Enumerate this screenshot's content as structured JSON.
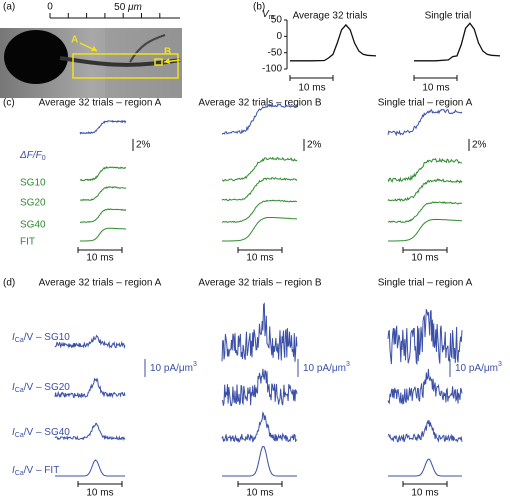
{
  "panel_a": {
    "label": "(a)",
    "scale_start": "0",
    "scale_end": {
      "value": "50",
      "unit": "μm"
    },
    "region_a": "A",
    "region_b": "B"
  },
  "panel_b": {
    "label": "(b)",
    "ylabel": {
      "main": "V",
      "sub": "m"
    },
    "chart_data": {
      "type": "line",
      "titles": [
        "Average 32 trials",
        "Single trial"
      ],
      "ylim": [
        -100,
        50
      ],
      "yticks": [
        50,
        0,
        -50,
        -100
      ],
      "xlim": [
        0,
        20
      ],
      "scale_bar": "10 ms",
      "series": [
        {
          "name": "Average 32 trials",
          "color": "#111111",
          "x": [
            0,
            5,
            8,
            9,
            10,
            11,
            12,
            13,
            14,
            15,
            16,
            17,
            18,
            20
          ],
          "values": [
            -75,
            -75,
            -74,
            -66,
            -55,
            -20,
            20,
            35,
            20,
            -20,
            -45,
            -55,
            -58,
            -60
          ]
        },
        {
          "name": "Single trial",
          "color": "#111111",
          "x": [
            0,
            5,
            8,
            9,
            10,
            11,
            12,
            13,
            14,
            15,
            16,
            17,
            18,
            20
          ],
          "values": [
            -75,
            -75,
            -72,
            -62,
            -60,
            -25,
            25,
            40,
            22,
            -20,
            -45,
            -55,
            -58,
            -60
          ]
        }
      ]
    }
  },
  "panel_c": {
    "label": "(c)",
    "titles": [
      "Average 32 trials – region A",
      "Average 32 trials – region B",
      "Single trial – region A"
    ],
    "trace_labels": [
      {
        "main": "ΔF/F",
        "sub": "0"
      },
      "SG10",
      "SG20",
      "SG40",
      "FIT"
    ],
    "scale_y": "2%",
    "scale_x": "10 ms"
  },
  "panel_d": {
    "label": "(d)",
    "titles": [
      "Average 32 trials – region A",
      "Average 32 trials – region B",
      "Single trial – region A"
    ],
    "trace_labels": [
      {
        "main": "I",
        "sub": "Ca",
        "rest": "/V – SG10"
      },
      {
        "main": "I",
        "sub": "Ca",
        "rest": "/V – SG20"
      },
      {
        "main": "I",
        "sub": "Ca",
        "rest": "/V – SG40"
      },
      {
        "main": "I",
        "sub": "Ca",
        "rest": "/V – FIT"
      }
    ],
    "scale_y": {
      "main": "10 pA/μm",
      "sup": "3"
    },
    "scale_x": "10 ms"
  }
}
